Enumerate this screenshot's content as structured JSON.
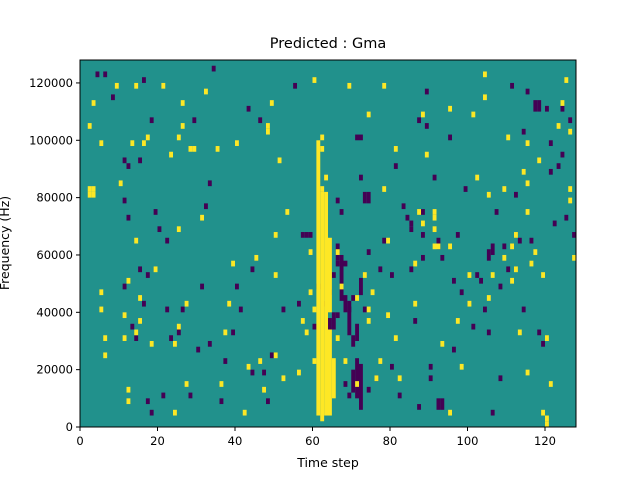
{
  "chart_data": {
    "type": "heatmap",
    "title": "Predicted : Gma",
    "xlabel": "Time step",
    "ylabel": "Frequency (Hz)",
    "xlim": [
      0,
      128
    ],
    "ylim": [
      0,
      128000
    ],
    "x_ticks": [
      0,
      20,
      40,
      60,
      80,
      100,
      120
    ],
    "y_ticks": [
      0,
      20000,
      40000,
      60000,
      80000,
      100000,
      120000
    ],
    "x_tick_labels": [
      "0",
      "20",
      "40",
      "60",
      "80",
      "100",
      "120"
    ],
    "y_tick_labels": [
      "0",
      "20000",
      "40000",
      "60000",
      "80000",
      "100000",
      "120000"
    ],
    "grid": false,
    "colormap": "viridis",
    "value_levels": [
      -1,
      0,
      1
    ],
    "colors": {
      "background": "#21918c",
      "high": "#fde725",
      "low": "#440154"
    },
    "cells_high": [
      [
        2,
        80000
      ],
      [
        2,
        82000
      ],
      [
        3,
        80000
      ],
      [
        3,
        82000
      ],
      [
        5,
        40000
      ],
      [
        5,
        46000
      ],
      [
        6,
        30000
      ],
      [
        6,
        24000
      ],
      [
        2,
        104000
      ],
      [
        3,
        112000
      ],
      [
        5,
        98000
      ],
      [
        9,
        118000
      ],
      [
        10,
        84000
      ],
      [
        11,
        38000
      ],
      [
        11,
        30000
      ],
      [
        12,
        50000
      ],
      [
        12,
        12000
      ],
      [
        12,
        8000
      ],
      [
        13,
        98000
      ],
      [
        14,
        118000
      ],
      [
        14,
        64000
      ],
      [
        14,
        32000
      ],
      [
        15,
        44000
      ],
      [
        15,
        36000
      ],
      [
        16,
        98000
      ],
      [
        17,
        100000
      ],
      [
        18,
        28000
      ],
      [
        19,
        54000
      ],
      [
        21,
        118000
      ],
      [
        23,
        94000
      ],
      [
        24,
        28000
      ],
      [
        24,
        4000
      ],
      [
        25,
        68000
      ],
      [
        25,
        34000
      ],
      [
        25,
        100000
      ],
      [
        26,
        112000
      ],
      [
        26,
        104000
      ],
      [
        27,
        42000
      ],
      [
        27,
        14000
      ],
      [
        28,
        96000
      ],
      [
        29,
        96000
      ],
      [
        31,
        72000
      ],
      [
        32,
        116000
      ],
      [
        35,
        96000
      ],
      [
        36,
        14000
      ],
      [
        37,
        32000
      ],
      [
        38,
        42000
      ],
      [
        39,
        56000
      ],
      [
        40,
        98000
      ],
      [
        42,
        4000
      ],
      [
        43,
        20000
      ],
      [
        45,
        58000
      ],
      [
        46,
        22000
      ],
      [
        47,
        12000
      ],
      [
        48,
        104000
      ],
      [
        48,
        102000
      ],
      [
        49,
        112000
      ],
      [
        50,
        66000
      ],
      [
        50,
        52000
      ],
      [
        50,
        24000
      ],
      [
        51,
        92000
      ],
      [
        52,
        16000
      ],
      [
        53,
        74000
      ],
      [
        56,
        18000
      ],
      [
        57,
        36000
      ],
      [
        58,
        32000
      ],
      [
        59,
        60000
      ],
      [
        59,
        46000
      ],
      [
        60,
        120000
      ],
      [
        60,
        40000
      ],
      [
        60,
        22000
      ],
      [
        62,
        82000
      ],
      [
        62,
        100000
      ],
      [
        62,
        96000
      ],
      [
        63,
        86000
      ],
      [
        66,
        60000
      ],
      [
        66,
        30000
      ],
      [
        67,
        48000
      ],
      [
        68,
        22000
      ],
      [
        69,
        118000
      ],
      [
        71,
        14000
      ],
      [
        71,
        44000
      ],
      [
        73,
        52000
      ],
      [
        74,
        108000
      ],
      [
        74,
        40000
      ],
      [
        74,
        36000
      ],
      [
        75,
        46000
      ],
      [
        76,
        16000
      ],
      [
        77,
        22000
      ],
      [
        78,
        118000
      ],
      [
        78,
        82000
      ],
      [
        79,
        38000
      ],
      [
        79,
        64000
      ],
      [
        81,
        96000
      ],
      [
        81,
        30000
      ],
      [
        82,
        16000
      ],
      [
        86,
        42000
      ],
      [
        86,
        56000
      ],
      [
        87,
        74000
      ],
      [
        88,
        70000
      ],
      [
        88,
        108000
      ],
      [
        89,
        94000
      ],
      [
        91,
        74000
      ],
      [
        91,
        72000
      ],
      [
        91,
        68000
      ],
      [
        91,
        62000
      ],
      [
        92,
        62000
      ],
      [
        93,
        28000
      ],
      [
        95,
        4000
      ],
      [
        95,
        110000
      ],
      [
        95,
        62000
      ],
      [
        97,
        36000
      ],
      [
        98,
        20000
      ],
      [
        100,
        52000
      ],
      [
        100,
        42000
      ],
      [
        101,
        108000
      ],
      [
        102,
        86000
      ],
      [
        104,
        122000
      ],
      [
        104,
        114000
      ],
      [
        105,
        80000
      ],
      [
        105,
        44000
      ],
      [
        106,
        52000
      ],
      [
        109,
        82000
      ],
      [
        109,
        58000
      ],
      [
        110,
        100000
      ],
      [
        111,
        50000
      ],
      [
        111,
        62000
      ],
      [
        112,
        66000
      ],
      [
        112,
        54000
      ],
      [
        113,
        32000
      ],
      [
        114,
        88000
      ],
      [
        115,
        98000
      ],
      [
        115,
        84000
      ],
      [
        115,
        74000
      ],
      [
        115,
        18000
      ],
      [
        116,
        56000
      ],
      [
        117,
        60000
      ],
      [
        118,
        92000
      ],
      [
        119,
        52000
      ],
      [
        119,
        4000
      ],
      [
        120,
        30000
      ],
      [
        120,
        2000
      ],
      [
        120,
        0
      ],
      [
        121,
        14000
      ],
      [
        123,
        104000
      ],
      [
        124,
        112000
      ],
      [
        125,
        120000
      ],
      [
        126,
        102000
      ],
      [
        126,
        82000
      ],
      [
        126,
        78000
      ],
      [
        127,
        58000
      ]
    ],
    "cells_low": [
      [
        4,
        122000
      ],
      [
        6,
        122000
      ],
      [
        8,
        114000
      ],
      [
        11,
        92000
      ],
      [
        11,
        78000
      ],
      [
        11,
        48000
      ],
      [
        12,
        90000
      ],
      [
        12,
        72000
      ],
      [
        13,
        34000
      ],
      [
        14,
        30000
      ],
      [
        15,
        92000
      ],
      [
        15,
        54000
      ],
      [
        16,
        120000
      ],
      [
        16,
        42000
      ],
      [
        17,
        8000
      ],
      [
        17,
        52000
      ],
      [
        18,
        106000
      ],
      [
        18,
        4000
      ],
      [
        19,
        74000
      ],
      [
        20,
        68000
      ],
      [
        21,
        10000
      ],
      [
        22,
        64000
      ],
      [
        22,
        40000
      ],
      [
        23,
        30000
      ],
      [
        25,
        32000
      ],
      [
        26,
        40000
      ],
      [
        28,
        10000
      ],
      [
        29,
        106000
      ],
      [
        30,
        26000
      ],
      [
        31,
        48000
      ],
      [
        32,
        76000
      ],
      [
        33,
        84000
      ],
      [
        33,
        28000
      ],
      [
        34,
        124000
      ],
      [
        36,
        8000
      ],
      [
        37,
        22000
      ],
      [
        39,
        32000
      ],
      [
        40,
        48000
      ],
      [
        41,
        40000
      ],
      [
        43,
        110000
      ],
      [
        44,
        54000
      ],
      [
        44,
        18000
      ],
      [
        46,
        106000
      ],
      [
        47,
        18000
      ],
      [
        48,
        8000
      ],
      [
        49,
        24000
      ],
      [
        52,
        40000
      ],
      [
        55,
        118000
      ],
      [
        56,
        42000
      ],
      [
        57,
        66000
      ],
      [
        60,
        34000
      ],
      [
        61,
        48000
      ],
      [
        63,
        42000
      ],
      [
        64,
        46000
      ],
      [
        65,
        52000
      ],
      [
        66,
        38000
      ],
      [
        66,
        56000
      ],
      [
        66,
        78000
      ],
      [
        67,
        74000
      ],
      [
        68,
        56000
      ],
      [
        68,
        14000
      ],
      [
        69,
        10000
      ],
      [
        69,
        40000
      ],
      [
        70,
        28000
      ],
      [
        70,
        44000
      ],
      [
        70,
        30000
      ],
      [
        71,
        100000
      ],
      [
        72,
        100000
      ],
      [
        72,
        86000
      ],
      [
        73,
        40000
      ],
      [
        74,
        12000
      ],
      [
        74,
        60000
      ],
      [
        76,
        16000
      ],
      [
        77,
        54000
      ],
      [
        78,
        64000
      ],
      [
        80,
        52000
      ],
      [
        80,
        20000
      ],
      [
        81,
        90000
      ],
      [
        82,
        10000
      ],
      [
        83,
        76000
      ],
      [
        84,
        72000
      ],
      [
        85,
        70000
      ],
      [
        85,
        68000
      ],
      [
        85,
        54000
      ],
      [
        86,
        36000
      ],
      [
        87,
        106000
      ],
      [
        87,
        6000
      ],
      [
        88,
        66000
      ],
      [
        88,
        58000
      ],
      [
        89,
        116000
      ],
      [
        89,
        104000
      ],
      [
        90,
        20000
      ],
      [
        90,
        16000
      ],
      [
        91,
        86000
      ],
      [
        93,
        58000
      ],
      [
        95,
        100000
      ],
      [
        96,
        50000
      ],
      [
        96,
        26000
      ],
      [
        97,
        66000
      ],
      [
        98,
        46000
      ],
      [
        99,
        82000
      ],
      [
        101,
        34000
      ],
      [
        102,
        52000
      ],
      [
        103,
        50000
      ],
      [
        104,
        40000
      ],
      [
        105,
        32000
      ],
      [
        106,
        4000
      ],
      [
        107,
        74000
      ],
      [
        108,
        48000
      ],
      [
        108,
        16000
      ],
      [
        109,
        62000
      ],
      [
        110,
        54000
      ],
      [
        111,
        118000
      ],
      [
        112,
        80000
      ],
      [
        113,
        64000
      ],
      [
        114,
        40000
      ],
      [
        114,
        102000
      ],
      [
        115,
        116000
      ],
      [
        116,
        64000
      ],
      [
        118,
        32000
      ],
      [
        119,
        28000
      ],
      [
        120,
        110000
      ],
      [
        121,
        98000
      ],
      [
        121,
        88000
      ],
      [
        122,
        70000
      ],
      [
        123,
        90000
      ],
      [
        124,
        110000
      ],
      [
        124,
        94000
      ],
      [
        125,
        72000
      ],
      [
        126,
        106000
      ],
      [
        127,
        66000
      ]
    ],
    "runs_high": [
      [
        61,
        4000,
        100000
      ],
      [
        62,
        2000,
        82000
      ],
      [
        63,
        4000,
        82000
      ],
      [
        64,
        40000,
        66000
      ],
      [
        64,
        4000,
        34000
      ],
      [
        65,
        10000,
        24000
      ]
    ],
    "runs_low": [
      [
        58,
        66000,
        68000
      ],
      [
        59,
        66000,
        68000
      ],
      [
        64,
        34000,
        38000
      ],
      [
        65,
        34000,
        40000
      ],
      [
        66,
        58000,
        64000
      ],
      [
        67,
        44000,
        60000
      ],
      [
        68,
        40000,
        46000
      ],
      [
        69,
        32000,
        44000
      ],
      [
        70,
        12000,
        20000
      ],
      [
        71,
        10000,
        24000
      ],
      [
        71,
        30000,
        36000
      ],
      [
        72,
        6000,
        22000
      ],
      [
        72,
        46000,
        52000
      ],
      [
        73,
        78000,
        82000
      ],
      [
        74,
        78000,
        82000
      ],
      [
        88,
        74000,
        76000
      ],
      [
        92,
        62000,
        66000
      ],
      [
        92,
        6000,
        10000
      ],
      [
        93,
        6000,
        10000
      ],
      [
        105,
        58000,
        62000
      ],
      [
        106,
        60000,
        64000
      ],
      [
        117,
        110000,
        114000
      ],
      [
        118,
        110000,
        114000
      ]
    ]
  }
}
